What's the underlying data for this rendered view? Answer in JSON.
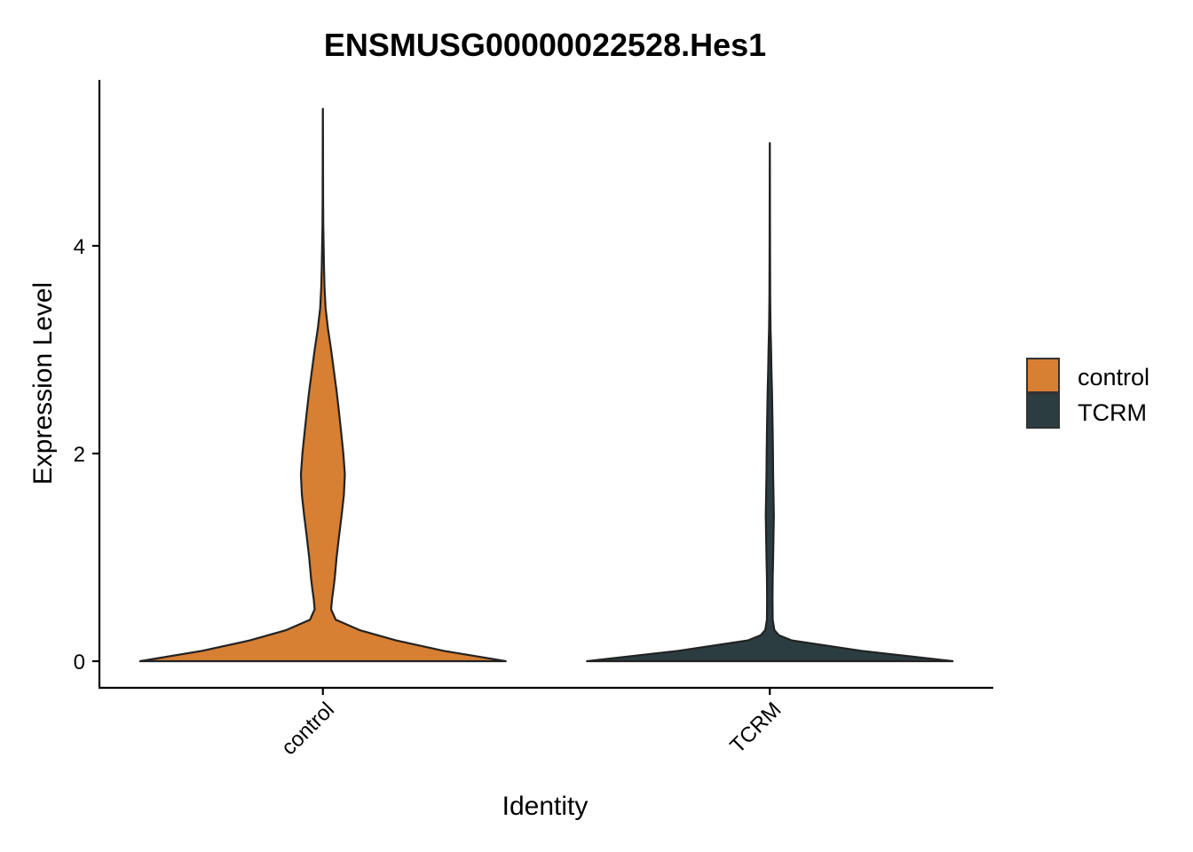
{
  "chart_data": {
    "type": "violin",
    "title": "ENSMUSG00000022528.Hes1",
    "xlabel": "Identity",
    "ylabel": "Expression Level",
    "ylim": [
      -0.25,
      5.5
    ],
    "yticks": [
      0,
      2,
      4
    ],
    "categories": [
      "control",
      "TCRM"
    ],
    "legend": {
      "position": "right",
      "entries": [
        {
          "label": "control",
          "color": "#D77F33"
        },
        {
          "label": "TCRM",
          "color": "#2B3D41"
        }
      ]
    },
    "series": [
      {
        "category": "control",
        "color": "#D77F33",
        "max": 5.32,
        "density": [
          [
            0.0,
            1.0
          ],
          [
            0.1,
            0.66
          ],
          [
            0.2,
            0.4
          ],
          [
            0.3,
            0.2
          ],
          [
            0.4,
            0.07
          ],
          [
            0.5,
            0.045
          ],
          [
            0.6,
            0.05
          ],
          [
            0.7,
            0.058
          ],
          [
            0.8,
            0.065
          ],
          [
            1.0,
            0.075
          ],
          [
            1.2,
            0.088
          ],
          [
            1.4,
            0.102
          ],
          [
            1.6,
            0.115
          ],
          [
            1.8,
            0.12
          ],
          [
            2.0,
            0.112
          ],
          [
            2.2,
            0.1
          ],
          [
            2.4,
            0.088
          ],
          [
            2.6,
            0.075
          ],
          [
            2.8,
            0.06
          ],
          [
            3.0,
            0.045
          ],
          [
            3.2,
            0.028
          ],
          [
            3.4,
            0.015
          ],
          [
            3.6,
            0.009
          ],
          [
            3.8,
            0.006
          ],
          [
            4.0,
            0.004
          ],
          [
            4.2,
            0.002
          ],
          [
            4.5,
            0.001
          ],
          [
            5.0,
            0.0005
          ],
          [
            5.32,
            0.0003
          ]
        ]
      },
      {
        "category": "TCRM",
        "color": "#2B3D41",
        "max": 4.99,
        "density": [
          [
            0.0,
            1.0
          ],
          [
            0.1,
            0.5
          ],
          [
            0.2,
            0.12
          ],
          [
            0.25,
            0.05
          ],
          [
            0.3,
            0.025
          ],
          [
            0.4,
            0.016
          ],
          [
            0.6,
            0.015
          ],
          [
            0.8,
            0.016
          ],
          [
            1.0,
            0.018
          ],
          [
            1.2,
            0.02
          ],
          [
            1.4,
            0.022
          ],
          [
            1.6,
            0.02
          ],
          [
            1.8,
            0.018
          ],
          [
            2.0,
            0.017
          ],
          [
            2.2,
            0.016
          ],
          [
            2.4,
            0.014
          ],
          [
            2.6,
            0.012
          ],
          [
            2.8,
            0.009
          ],
          [
            3.0,
            0.007
          ],
          [
            3.2,
            0.004
          ],
          [
            3.5,
            0.002
          ],
          [
            4.0,
            0.001
          ],
          [
            4.5,
            0.0005
          ],
          [
            4.99,
            0.0003
          ]
        ]
      }
    ]
  }
}
